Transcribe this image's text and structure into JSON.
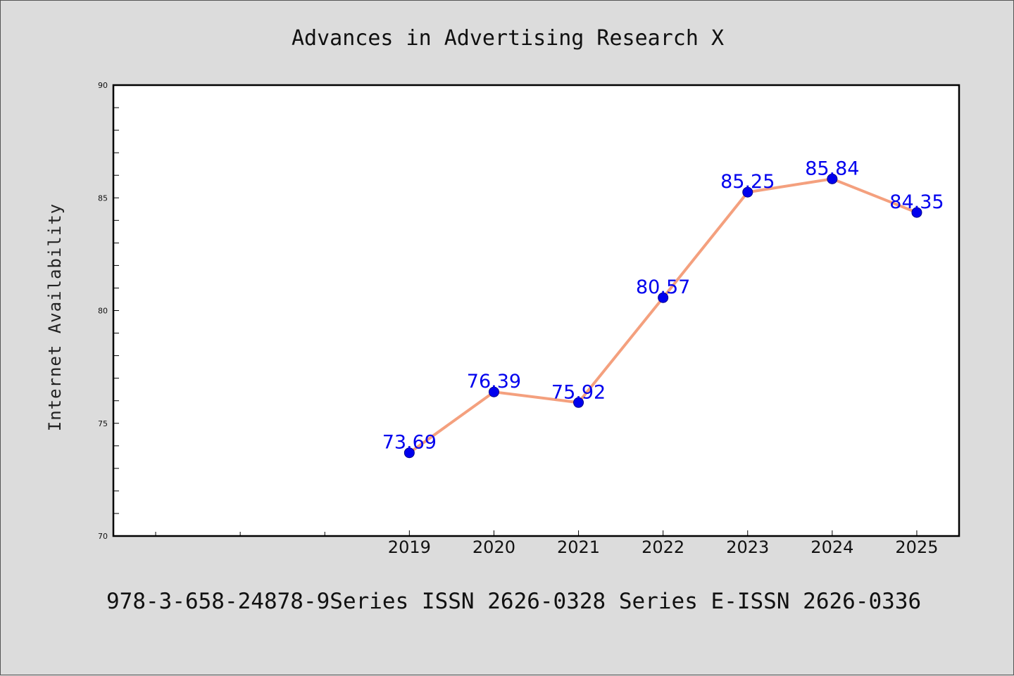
{
  "chart_data": {
    "type": "line",
    "title": "Advances in Advertising Research X",
    "xlabel": "",
    "ylabel": "Internet Availability",
    "x": [
      2019,
      2020,
      2021,
      2022,
      2023,
      2024,
      2025
    ],
    "series": [
      {
        "values": [
          73.69,
          76.39,
          75.92,
          80.57,
          85.25,
          85.84,
          84.35
        ]
      }
    ],
    "data_labels": [
      "73.69",
      "76.39",
      "75.92",
      "80.57",
      "85.25",
      "85.84",
      "84.35"
    ],
    "xlim": [
      2015.5,
      2025.5
    ],
    "ylim": [
      70,
      90
    ],
    "yticks": [
      70,
      75,
      80,
      85,
      90
    ],
    "xticks": [
      2019,
      2020,
      2021,
      2022,
      2023,
      2024,
      2025
    ],
    "x_minor_ticks": [
      2016,
      2017,
      2018
    ],
    "grid": false,
    "legend": "none",
    "colors": {
      "line": "#f4a07e",
      "marker": "#0000ee",
      "data_label": "#0000ee",
      "plot_background": "#ffffff",
      "figure_background": "#dcdcdc"
    }
  },
  "footer_text": "978-3-658-24878-9Series ISSN 2626-0328 Series E-ISSN 2626-0336"
}
